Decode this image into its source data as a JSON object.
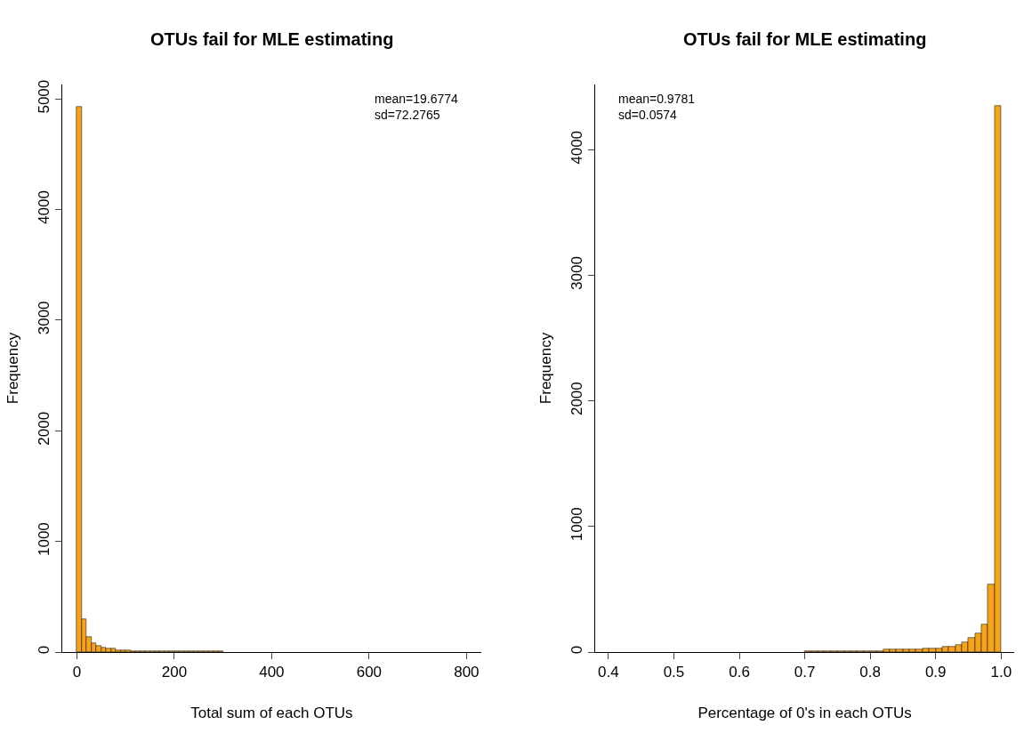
{
  "chart_data": [
    {
      "type": "histogram",
      "title": "OTUs fail for MLE estimating",
      "xlabel": "Total sum of each OTUs",
      "ylabel": "Frequency",
      "color": "#f5a31a",
      "bins": [
        0,
        10,
        20,
        30,
        40,
        50,
        60,
        70,
        80,
        90,
        100,
        110,
        120,
        130,
        140,
        150,
        160,
        170,
        180,
        190,
        200,
        210,
        220,
        230,
        240,
        250,
        260,
        270,
        280,
        290,
        300,
        310,
        320,
        330,
        340,
        350,
        360,
        370,
        380,
        390,
        400,
        410,
        420,
        430,
        440,
        450,
        460,
        470,
        480,
        490,
        500,
        510,
        520,
        530,
        540,
        550,
        560,
        570,
        580,
        590,
        600,
        610,
        620,
        630,
        640,
        650,
        660,
        670,
        680,
        690,
        700,
        710,
        720,
        730,
        740,
        750,
        760,
        770
      ],
      "values": [
        4930,
        300,
        140,
        80,
        60,
        40,
        30,
        30,
        20,
        20,
        20,
        10,
        10,
        10,
        10,
        10,
        10,
        10,
        10,
        10,
        10,
        10,
        10,
        10,
        10,
        10,
        10,
        10,
        10,
        10,
        0,
        0,
        0,
        0,
        0,
        0,
        0,
        0,
        0,
        0,
        0,
        0,
        0,
        0,
        0,
        0,
        0,
        0,
        0,
        0,
        0,
        0,
        0,
        0,
        0,
        0,
        0,
        0,
        0,
        0,
        0,
        0,
        0,
        0,
        0,
        0,
        0,
        0,
        0,
        0,
        0,
        0,
        0,
        0,
        0,
        0,
        0
      ],
      "xlim": [
        -30,
        830
      ],
      "ylim": [
        0,
        5130
      ],
      "xticks": [
        0,
        200,
        400,
        600,
        800
      ],
      "yticks": [
        0,
        1000,
        2000,
        3000,
        4000,
        5000
      ],
      "annotations": [
        "mean=19.6774\nsd=72.2765"
      ]
    },
    {
      "type": "histogram",
      "title": "OTUs fail for MLE estimating",
      "xlabel": "Percentage of 0's in each OTUs",
      "ylabel": "Frequency",
      "color": "#f5a31a",
      "bins": [
        0.4,
        0.41,
        0.42,
        0.43,
        0.44,
        0.45,
        0.46,
        0.47,
        0.48,
        0.49,
        0.5,
        0.51,
        0.52,
        0.53,
        0.54,
        0.55,
        0.56,
        0.57,
        0.58,
        0.59,
        0.6,
        0.61,
        0.62,
        0.63,
        0.64,
        0.65,
        0.66,
        0.67,
        0.68,
        0.69,
        0.7,
        0.71,
        0.72,
        0.73,
        0.74,
        0.75,
        0.76,
        0.77,
        0.78,
        0.79,
        0.8,
        0.81,
        0.82,
        0.83,
        0.84,
        0.85,
        0.86,
        0.87,
        0.88,
        0.89,
        0.9,
        0.91,
        0.92,
        0.93,
        0.94,
        0.95,
        0.96,
        0.97,
        0.98,
        0.99,
        1.0
      ],
      "values": [
        0,
        0,
        0,
        0,
        0,
        0,
        0,
        0,
        0,
        0,
        0,
        0,
        0,
        0,
        0,
        0,
        0,
        0,
        0,
        0,
        0,
        0,
        0,
        0,
        0,
        0,
        0,
        0,
        0,
        0,
        10,
        10,
        10,
        10,
        10,
        10,
        10,
        10,
        10,
        10,
        10,
        10,
        20,
        20,
        20,
        20,
        20,
        20,
        30,
        30,
        30,
        40,
        40,
        60,
        80,
        110,
        150,
        220,
        540,
        4350
      ],
      "xlim": [
        0.38,
        1.02
      ],
      "ylim": [
        0,
        4520
      ],
      "xticks": [
        0.4,
        0.5,
        0.6,
        0.7,
        0.8,
        0.9,
        {
          "value": 1.0,
          "label": "1.0"
        }
      ],
      "yticks": [
        0,
        1000,
        2000,
        3000,
        4000
      ],
      "annotations": [
        "mean=0.9781\nsd=0.0574"
      ]
    }
  ]
}
